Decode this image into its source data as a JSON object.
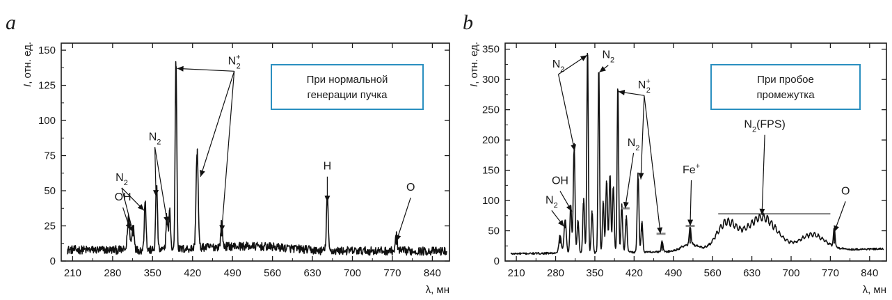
{
  "chart_data": [
    {
      "type": "line",
      "panel_label": "a",
      "xlabel": "λ, мн",
      "ylabel_prefix": "I",
      "ylabel_suffix": ", отн. ед.",
      "xlim": [
        190,
        870
      ],
      "ylim": [
        0,
        155
      ],
      "xticks": [
        210,
        280,
        350,
        420,
        490,
        560,
        630,
        700,
        770,
        840
      ],
      "yticks": [
        0,
        25,
        50,
        75,
        100,
        125,
        150
      ],
      "legend_box": [
        "При нормальной",
        "генерации пучка"
      ],
      "baseline": {
        "start": 8,
        "end": 7,
        "noise": 6
      },
      "peaks": [
        {
          "x": 308,
          "y": 24,
          "w": 2
        },
        {
          "x": 316,
          "y": 18,
          "w": 2
        },
        {
          "x": 337,
          "y": 37,
          "w": 1.5
        },
        {
          "x": 357,
          "y": 48,
          "w": 1.5
        },
        {
          "x": 375,
          "y": 26,
          "w": 1.5
        },
        {
          "x": 380,
          "y": 28,
          "w": 1.5
        },
        {
          "x": 391,
          "y": 137,
          "w": 1.4
        },
        {
          "x": 428,
          "y": 70,
          "w": 1.8
        },
        {
          "x": 471,
          "y": 18,
          "w": 1.5
        },
        {
          "x": 656,
          "y": 40,
          "w": 1.5
        },
        {
          "x": 777,
          "y": 12,
          "w": 1.5
        }
      ],
      "annotations": [
        {
          "label": "OH",
          "text": [
            298,
            43
          ],
          "targets": [
            [
              311,
              22
            ]
          ]
        },
        {
          "label": "N",
          "sub": "2",
          "text": [
            296,
            57
          ],
          "targets": [
            [
              316,
              20
            ],
            [
              335,
              36
            ]
          ]
        },
        {
          "label": "N",
          "sub": "2",
          "text": [
            354,
            86
          ],
          "targets": [
            [
              356,
              46
            ],
            [
              376,
              27
            ]
          ]
        },
        {
          "label": "N",
          "sup": "+",
          "sub": "2",
          "text": [
            493,
            140
          ],
          "targets": [
            [
              393,
              137
            ],
            [
              434,
              60
            ],
            [
              471,
              21
            ]
          ]
        },
        {
          "label": "H",
          "text": [
            656,
            65
          ],
          "targets": [
            [
              656,
              42
            ]
          ]
        },
        {
          "label": "O",
          "text": [
            802,
            50
          ],
          "targets": [
            [
              777,
              14
            ]
          ]
        }
      ]
    },
    {
      "type": "line",
      "panel_label": "b",
      "xlabel": "λ, мн",
      "ylabel_prefix": "I",
      "ylabel_suffix": ", отн. ед.",
      "xlim": [
        190,
        870
      ],
      "ylim": [
        0,
        360
      ],
      "xticks": [
        210,
        280,
        350,
        420,
        490,
        560,
        630,
        700,
        770,
        840
      ],
      "yticks": [
        0,
        50,
        100,
        150,
        200,
        250,
        300,
        350
      ],
      "legend_box": [
        "При пробое",
        "промежутка"
      ],
      "baseline": {
        "start": 12,
        "end": 20,
        "noise": 3
      },
      "humps": [
        {
          "x": 585,
          "y": 45,
          "w": 18
        },
        {
          "x": 648,
          "y": 55,
          "w": 26
        },
        {
          "x": 738,
          "y": 25,
          "w": 22
        },
        {
          "x": 520,
          "y": 12,
          "w": 15
        }
      ],
      "peaks": [
        {
          "x": 288,
          "y": 30,
          "w": 2
        },
        {
          "x": 297,
          "y": 55,
          "w": 2
        },
        {
          "x": 307,
          "y": 80,
          "w": 1.5
        },
        {
          "x": 313,
          "y": 180,
          "w": 1.5
        },
        {
          "x": 320,
          "y": 55,
          "w": 1.5
        },
        {
          "x": 330,
          "y": 90,
          "w": 1.5
        },
        {
          "x": 337,
          "y": 340,
          "w": 1.3
        },
        {
          "x": 345,
          "y": 70,
          "w": 1.5
        },
        {
          "x": 357,
          "y": 310,
          "w": 1.3
        },
        {
          "x": 365,
          "y": 85,
          "w": 1.5
        },
        {
          "x": 371,
          "y": 120,
          "w": 1.5
        },
        {
          "x": 377,
          "y": 130,
          "w": 1.5
        },
        {
          "x": 383,
          "y": 110,
          "w": 1.5
        },
        {
          "x": 391,
          "y": 280,
          "w": 1.3
        },
        {
          "x": 398,
          "y": 80,
          "w": 1.5
        },
        {
          "x": 406,
          "y": 60,
          "w": 1.5
        },
        {
          "x": 427,
          "y": 130,
          "w": 1.5
        },
        {
          "x": 434,
          "y": 50,
          "w": 1.5
        },
        {
          "x": 470,
          "y": 18,
          "w": 1.5
        },
        {
          "x": 520,
          "y": 30,
          "w": 1.5
        },
        {
          "x": 777,
          "y": 30,
          "w": 1.5
        }
      ],
      "annotations": [
        {
          "label": "N",
          "sub": "2",
          "text": [
            273,
            95
          ],
          "targets": [
            [
              295,
              57
            ]
          ]
        },
        {
          "label": "OH",
          "text": [
            288,
            127
          ],
          "targets": [
            [
              309,
              82
            ]
          ]
        },
        {
          "label": "N",
          "sub": "2",
          "text": [
            285,
            320
          ],
          "targets": [
            [
              314,
              182
            ],
            [
              336,
              340
            ]
          ]
        },
        {
          "label": "N",
          "sub": "2",
          "text": [
            374,
            335
          ],
          "targets": [
            [
              358,
              312
            ]
          ]
        },
        {
          "label": "N",
          "sup": "+",
          "sub": "2",
          "text": [
            438,
            285
          ],
          "targets": [
            [
              392,
              280
            ],
            [
              432,
              135
            ],
            [
              467,
              45
            ]
          ]
        },
        {
          "label": "N",
          "sub": "2",
          "text": [
            419,
            190
          ],
          "targets": [
            [
              404,
              87
            ]
          ]
        },
        {
          "label": "Fe",
          "sup": "+",
          "text": [
            522,
            145
          ],
          "targets": [
            [
              520,
              58
            ]
          ]
        },
        {
          "label": "N",
          "sub": "2",
          "suffix": "(FPS)",
          "text": [
            653,
            220
          ],
          "targets": [
            [
              648,
              76
            ]
          ]
        },
        {
          "label": "O",
          "text": [
            797,
            110
          ],
          "targets": [
            [
              777,
              48
            ]
          ]
        }
      ],
      "segments": [
        {
          "x1": 570,
          "x2": 770,
          "y": 78
        },
        {
          "x1": 398,
          "x2": 412,
          "y": 87
        },
        {
          "x1": 460,
          "x2": 476,
          "y": 45
        },
        {
          "x1": 512,
          "x2": 528,
          "y": 58
        }
      ]
    }
  ]
}
